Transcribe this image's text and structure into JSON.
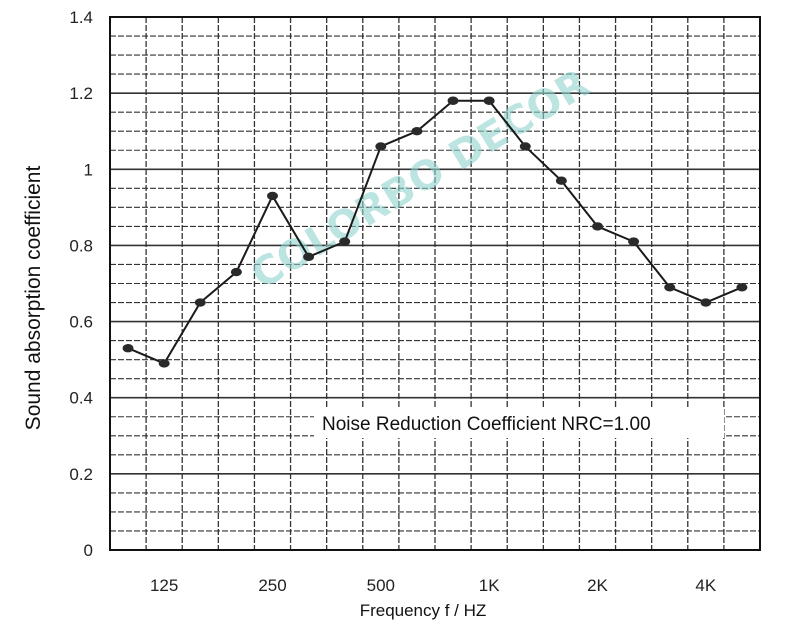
{
  "chart_data": {
    "type": "line",
    "title": "",
    "xlabel": "Frequency f / HZ",
    "ylabel": "Sound absorption coefficient",
    "ylim": [
      0,
      1.4
    ],
    "y_ticks": [
      "0",
      "0.2",
      "0.4",
      "0.6",
      "0.8",
      "1",
      "1.2",
      "1.4"
    ],
    "x_tick_labels": [
      "125",
      "250",
      "500",
      "1K",
      "2K",
      "4K"
    ],
    "grid": true,
    "annotation": "Noise Reduction Coefficient NRC=1.00",
    "watermark": "COLORBO DECOR",
    "series": [
      {
        "name": "Sound absorption coefficient",
        "x": [
          100,
          125,
          160,
          200,
          250,
          315,
          400,
          500,
          630,
          800,
          1000,
          1250,
          1600,
          2000,
          2500,
          3150,
          4000,
          5000
        ],
        "values": [
          0.53,
          0.49,
          0.65,
          0.73,
          0.93,
          0.77,
          0.81,
          1.06,
          1.1,
          1.18,
          1.18,
          1.06,
          0.97,
          0.85,
          0.81,
          0.69,
          0.65,
          0.69
        ]
      }
    ],
    "colors": {
      "line": "#1a1a1a",
      "marker": "#2a2a2a",
      "grid": "#333333",
      "watermark": "#8fd3cf"
    }
  }
}
